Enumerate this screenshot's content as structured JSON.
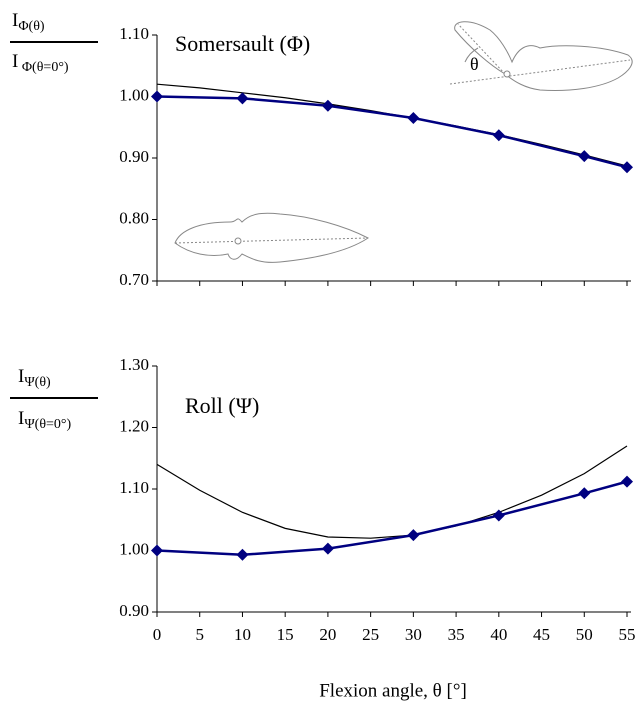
{
  "chart_data": [
    {
      "type": "line",
      "annotation": "Somersault (Φ)",
      "inset_label": "θ",
      "y_label": {
        "numerator_main": "I",
        "numerator_sub": "Φ(θ)",
        "denominator_main": "I",
        "denominator_sub": " Φ(θ=0°)"
      },
      "xlim": [
        0,
        55
      ],
      "xticks": [
        0,
        5,
        10,
        15,
        20,
        25,
        30,
        35,
        40,
        45,
        50,
        55
      ],
      "xtick_labels": false,
      "ylim": [
        0.7,
        1.1
      ],
      "yticks": [
        {
          "value": 0.7,
          "label": "0.70"
        },
        {
          "value": 0.8,
          "label": "0.80"
        },
        {
          "value": 0.9,
          "label": "0.90"
        },
        {
          "value": 1.0,
          "label": "1.00"
        },
        {
          "value": 1.1,
          "label": "1.10"
        }
      ],
      "series": [
        {
          "color": "#000000",
          "markers": false,
          "x": [
            0,
            5,
            10,
            15,
            20,
            25,
            30,
            35,
            40,
            45,
            50,
            55
          ],
          "values": [
            1.02,
            1.014,
            1.006,
            0.998,
            0.988,
            0.977,
            0.965,
            0.952,
            0.938,
            0.922,
            0.905,
            0.887
          ]
        },
        {
          "color": "#000080",
          "markers": true,
          "x": [
            0,
            10,
            20,
            30,
            40,
            50,
            55
          ],
          "values": [
            1.0,
            0.997,
            0.985,
            0.965,
            0.937,
            0.903,
            0.885
          ]
        }
      ]
    },
    {
      "type": "line",
      "annotation": "Roll (Ψ)",
      "x_label": "Flexion angle, θ [°]",
      "y_label": {
        "numerator_main": "I",
        "numerator_sub": "Ψ(θ)",
        "denominator_main": "I",
        "denominator_sub": "Ψ(θ=0°)"
      },
      "xlim": [
        0,
        55
      ],
      "xticks": [
        0,
        5,
        10,
        15,
        20,
        25,
        30,
        35,
        40,
        45,
        50,
        55
      ],
      "xtick_labels": true,
      "ylim": [
        0.9,
        1.3
      ],
      "yticks": [
        {
          "value": 0.9,
          "label": "0.90"
        },
        {
          "value": 1.0,
          "label": "1.00"
        },
        {
          "value": 1.1,
          "label": "1.10"
        },
        {
          "value": 1.2,
          "label": "1.20"
        },
        {
          "value": 1.3,
          "label": "1.30"
        }
      ],
      "series": [
        {
          "color": "#000000",
          "markers": false,
          "x": [
            0,
            5,
            10,
            15,
            20,
            25,
            30,
            35,
            40,
            45,
            50,
            55
          ],
          "values": [
            1.14,
            1.098,
            1.062,
            1.036,
            1.022,
            1.02,
            1.025,
            1.04,
            1.062,
            1.09,
            1.125,
            1.17
          ]
        },
        {
          "color": "#000080",
          "markers": true,
          "x": [
            0,
            10,
            20,
            30,
            40,
            50,
            55
          ],
          "values": [
            1.0,
            0.993,
            1.003,
            1.025,
            1.057,
            1.093,
            1.112
          ]
        }
      ]
    }
  ]
}
